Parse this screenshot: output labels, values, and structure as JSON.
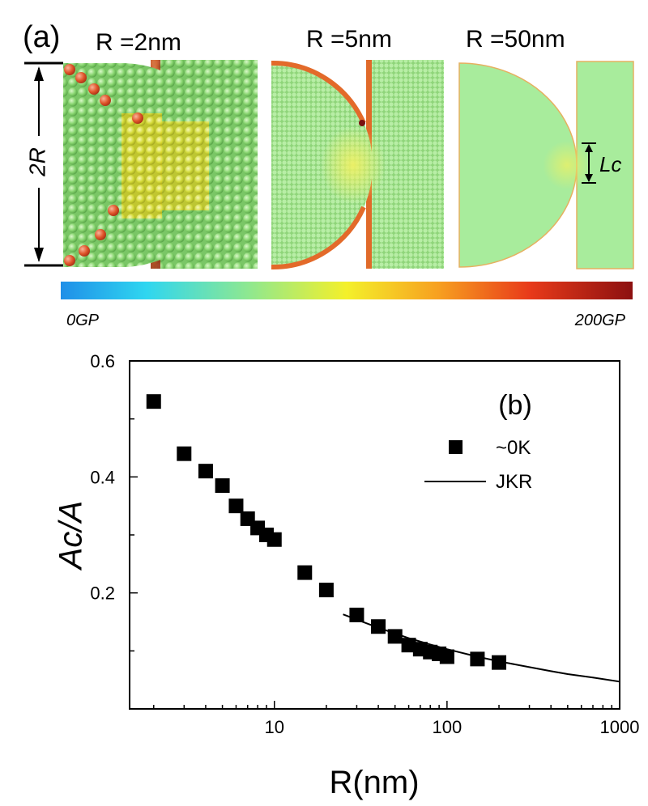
{
  "panel_a": {
    "label": "(a)",
    "size_label": "2R",
    "colorbar": {
      "min_label": "0GP",
      "max_label": "200GP"
    },
    "simulations": [
      {
        "title": "R =2nm"
      },
      {
        "title": "R =5nm"
      },
      {
        "title": "R =50nm",
        "annotation": "Lc"
      }
    ],
    "colors": {
      "base_green": "#9fe08a",
      "high_red": "#d9401f",
      "mid_yellow": "#e8e22a",
      "field_green": "#a8ec9c"
    }
  },
  "chart_data": {
    "type": "scatter",
    "panel_label": "(b)",
    "xlabel": "R(nm)",
    "ylabel": "Ac/A",
    "xscale": "log",
    "xlim": [
      1.45,
      1000
    ],
    "ylim": [
      0.0,
      0.6
    ],
    "x_ticks": [
      10,
      100,
      1000
    ],
    "x_tick_labels": [
      "10",
      "100",
      "1000"
    ],
    "y_ticks": [
      0.2,
      0.4,
      0.6
    ],
    "y_tick_labels": [
      "0.2",
      "0.4",
      "0.6"
    ],
    "grid": false,
    "legend_position": "top-right",
    "series": [
      {
        "name": "~0K",
        "kind": "scatter",
        "marker": "square",
        "color": "#000000",
        "x": [
          2,
          3,
          4,
          5,
          6,
          7,
          8,
          9,
          10,
          15,
          20,
          30,
          40,
          50,
          60,
          70,
          80,
          90,
          100,
          150,
          200
        ],
        "y": [
          0.53,
          0.44,
          0.41,
          0.385,
          0.35,
          0.328,
          0.312,
          0.3,
          0.292,
          0.235,
          0.205,
          0.162,
          0.142,
          0.125,
          0.11,
          0.103,
          0.098,
          0.095,
          0.09,
          0.086,
          0.08
        ]
      },
      {
        "name": "JKR",
        "kind": "line",
        "color": "#000000",
        "x": [
          25,
          30,
          40,
          50,
          60,
          80,
          100,
          150,
          200,
          300,
          400,
          500,
          700,
          1000
        ],
        "y": [
          0.163,
          0.154,
          0.14,
          0.13,
          0.122,
          0.111,
          0.103,
          0.09,
          0.082,
          0.072,
          0.065,
          0.06,
          0.054,
          0.047
        ]
      }
    ]
  }
}
